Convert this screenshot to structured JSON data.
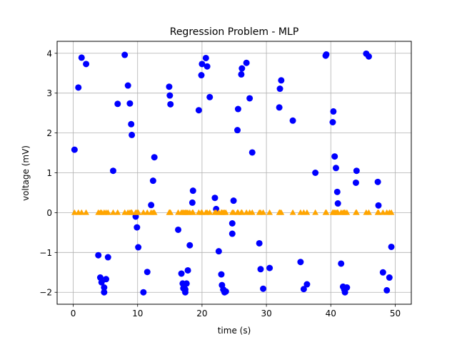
{
  "chart_data": {
    "type": "scatter",
    "title": "Regression Problem - MLP",
    "xlabel": "time (s)",
    "ylabel": "voltage (mV)",
    "xlim": [
      -2.5,
      52.5
    ],
    "ylim": [
      -2.3,
      4.3
    ],
    "xticks": [
      0,
      10,
      20,
      30,
      40,
      50
    ],
    "xtick_labels": [
      "0",
      "10",
      "20",
      "30",
      "40",
      "50"
    ],
    "yticks": [
      -2,
      -1,
      0,
      1,
      2,
      3,
      4
    ],
    "ytick_labels": [
      "−2",
      "−1",
      "0",
      "1",
      "2",
      "3",
      "4"
    ],
    "grid": true,
    "series": [
      {
        "marker": "circle",
        "color": "#0000ff",
        "points": [
          [
            0.2,
            1.58
          ],
          [
            0.8,
            3.14
          ],
          [
            1.3,
            3.89
          ],
          [
            2.0,
            3.73
          ],
          [
            3.9,
            -1.07
          ],
          [
            4.2,
            -1.63
          ],
          [
            4.4,
            -1.75
          ],
          [
            4.8,
            -1.88
          ],
          [
            4.8,
            -2.0
          ],
          [
            5.1,
            -1.67
          ],
          [
            5.4,
            -1.12
          ],
          [
            6.2,
            1.05
          ],
          [
            6.9,
            2.73
          ],
          [
            8.0,
            3.96
          ],
          [
            8.5,
            3.19
          ],
          [
            8.8,
            2.74
          ],
          [
            9.0,
            2.22
          ],
          [
            9.1,
            1.95
          ],
          [
            9.7,
            -0.1
          ],
          [
            9.9,
            -0.37
          ],
          [
            10.1,
            -0.87
          ],
          [
            10.9,
            -2.0
          ],
          [
            11.5,
            -1.49
          ],
          [
            12.1,
            0.19
          ],
          [
            12.4,
            0.8
          ],
          [
            12.6,
            1.39
          ],
          [
            14.9,
            3.16
          ],
          [
            15.0,
            2.94
          ],
          [
            15.1,
            2.72
          ],
          [
            16.3,
            -0.43
          ],
          [
            16.8,
            -1.53
          ],
          [
            17.0,
            -1.78
          ],
          [
            17.1,
            -1.9
          ],
          [
            17.3,
            -1.91
          ],
          [
            17.4,
            -1.93
          ],
          [
            17.4,
            -2.0
          ],
          [
            17.6,
            -1.78
          ],
          [
            17.8,
            -1.45
          ],
          [
            18.1,
            -0.82
          ],
          [
            18.5,
            0.25
          ],
          [
            18.6,
            0.55
          ],
          [
            19.5,
            2.57
          ],
          [
            19.9,
            3.45
          ],
          [
            20.0,
            3.73
          ],
          [
            20.6,
            3.88
          ],
          [
            20.8,
            3.67
          ],
          [
            21.2,
            2.9
          ],
          [
            22.0,
            0.37
          ],
          [
            22.2,
            0.09
          ],
          [
            22.6,
            -0.97
          ],
          [
            23.0,
            -1.55
          ],
          [
            23.1,
            -1.82
          ],
          [
            23.3,
            -1.93
          ],
          [
            23.5,
            -2.0
          ],
          [
            23.7,
            -1.98
          ],
          [
            24.7,
            -0.53
          ],
          [
            24.7,
            -0.27
          ],
          [
            24.9,
            0.3
          ],
          [
            25.5,
            2.07
          ],
          [
            25.6,
            2.6
          ],
          [
            26.1,
            3.47
          ],
          [
            26.2,
            3.62
          ],
          [
            26.9,
            3.76
          ],
          [
            27.4,
            2.87
          ],
          [
            27.8,
            1.51
          ],
          [
            28.9,
            -0.77
          ],
          [
            29.1,
            -1.42
          ],
          [
            29.5,
            -1.91
          ],
          [
            30.5,
            -1.39
          ],
          [
            32.0,
            2.64
          ],
          [
            32.1,
            3.11
          ],
          [
            32.3,
            3.32
          ],
          [
            34.1,
            2.31
          ],
          [
            35.3,
            -1.24
          ],
          [
            35.8,
            -1.92
          ],
          [
            36.3,
            -1.8
          ],
          [
            37.6,
            1.0
          ],
          [
            39.2,
            3.94
          ],
          [
            39.3,
            3.97
          ],
          [
            40.3,
            2.27
          ],
          [
            40.4,
            2.54
          ],
          [
            40.6,
            1.41
          ],
          [
            40.8,
            1.12
          ],
          [
            41.0,
            0.52
          ],
          [
            41.1,
            0.23
          ],
          [
            41.6,
            -1.28
          ],
          [
            41.9,
            -1.86
          ],
          [
            42.1,
            -1.93
          ],
          [
            42.2,
            -2.0
          ],
          [
            42.5,
            -1.88
          ],
          [
            43.9,
            0.75
          ],
          [
            44.0,
            1.05
          ],
          [
            45.5,
            3.99
          ],
          [
            45.9,
            3.92
          ],
          [
            47.3,
            0.77
          ],
          [
            47.4,
            0.18
          ],
          [
            48.1,
            -1.5
          ],
          [
            48.7,
            -1.95
          ],
          [
            49.1,
            -1.63
          ],
          [
            49.4,
            -0.86
          ]
        ]
      },
      {
        "marker": "triangle",
        "color": "#ffa500",
        "points": [
          [
            0.2,
            0
          ],
          [
            0.8,
            0
          ],
          [
            1.3,
            0
          ],
          [
            2.0,
            0
          ],
          [
            3.9,
            0
          ],
          [
            4.2,
            0
          ],
          [
            4.4,
            0
          ],
          [
            4.8,
            0
          ],
          [
            5.1,
            0
          ],
          [
            5.4,
            0
          ],
          [
            6.2,
            0
          ],
          [
            6.9,
            0
          ],
          [
            8.0,
            0
          ],
          [
            8.5,
            0
          ],
          [
            8.8,
            0
          ],
          [
            9.0,
            0
          ],
          [
            9.1,
            0
          ],
          [
            9.7,
            0
          ],
          [
            9.9,
            0
          ],
          [
            10.1,
            0
          ],
          [
            10.9,
            0
          ],
          [
            11.5,
            0
          ],
          [
            12.1,
            0
          ],
          [
            12.4,
            0
          ],
          [
            12.6,
            0
          ],
          [
            14.9,
            0
          ],
          [
            15.0,
            0
          ],
          [
            15.1,
            0
          ],
          [
            16.3,
            0
          ],
          [
            16.8,
            0
          ],
          [
            17.0,
            0
          ],
          [
            17.2,
            0
          ],
          [
            17.4,
            0
          ],
          [
            17.6,
            0
          ],
          [
            17.8,
            0
          ],
          [
            18.1,
            0
          ],
          [
            18.5,
            0
          ],
          [
            18.6,
            0
          ],
          [
            19.5,
            0
          ],
          [
            19.9,
            0
          ],
          [
            20.0,
            0
          ],
          [
            20.6,
            0
          ],
          [
            20.8,
            0
          ],
          [
            21.2,
            0
          ],
          [
            22.0,
            0
          ],
          [
            22.2,
            0
          ],
          [
            22.6,
            0
          ],
          [
            23.0,
            0
          ],
          [
            23.1,
            0
          ],
          [
            23.3,
            0
          ],
          [
            23.5,
            0
          ],
          [
            23.7,
            0
          ],
          [
            24.7,
            0
          ],
          [
            24.9,
            0
          ],
          [
            25.5,
            0
          ],
          [
            25.6,
            0
          ],
          [
            26.1,
            0
          ],
          [
            26.2,
            0
          ],
          [
            26.9,
            0
          ],
          [
            27.4,
            0
          ],
          [
            27.8,
            0
          ],
          [
            28.9,
            0
          ],
          [
            29.1,
            0
          ],
          [
            29.5,
            0
          ],
          [
            30.5,
            0
          ],
          [
            32.0,
            0
          ],
          [
            32.1,
            0
          ],
          [
            32.3,
            0
          ],
          [
            34.1,
            0
          ],
          [
            35.3,
            0
          ],
          [
            35.8,
            0
          ],
          [
            36.3,
            0
          ],
          [
            37.6,
            0
          ],
          [
            39.2,
            0
          ],
          [
            39.3,
            0
          ],
          [
            40.3,
            0
          ],
          [
            40.4,
            0
          ],
          [
            40.6,
            0
          ],
          [
            40.8,
            0
          ],
          [
            41.0,
            0
          ],
          [
            41.1,
            0
          ],
          [
            41.6,
            0
          ],
          [
            41.9,
            0
          ],
          [
            42.1,
            0
          ],
          [
            42.2,
            0
          ],
          [
            42.5,
            0
          ],
          [
            43.9,
            0
          ],
          [
            44.0,
            0
          ],
          [
            45.5,
            0
          ],
          [
            45.9,
            0
          ],
          [
            47.3,
            0
          ],
          [
            47.4,
            0
          ],
          [
            48.1,
            0
          ],
          [
            48.7,
            0
          ],
          [
            49.1,
            0
          ],
          [
            49.4,
            0
          ]
        ]
      }
    ]
  }
}
